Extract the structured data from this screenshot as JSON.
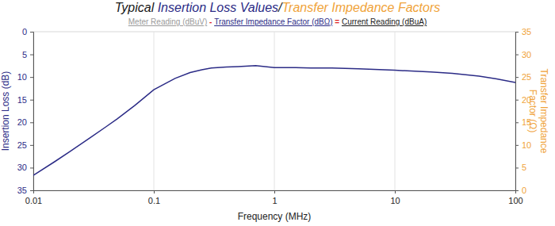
{
  "chart_data": {
    "type": "line",
    "title_parts": [
      {
        "text": "Typical ",
        "color": "#1a1a1a"
      },
      {
        "text": "Insertion Loss Values",
        "color": "#2b2b86"
      },
      {
        "text": "/",
        "color": "#1a1a1a"
      },
      {
        "text": "Transfer Impedance Factors",
        "color": "#f0a33a"
      }
    ],
    "subtitle_parts": [
      {
        "text": "Meter Reading (dBuV)",
        "color": "#9a9a9a"
      },
      {
        "text": " - ",
        "color": "#e02020"
      },
      {
        "text": "Transfer Impedance Factor (dBΩ)",
        "color": "#2b2b86"
      },
      {
        "text": " = ",
        "color": "#e02020"
      },
      {
        "text": "Current Reading (dBuA)",
        "color": "#1a1a1a"
      }
    ],
    "xlabel": "Frequency (MHz)",
    "ylabel": "Insertion Loss (dB)",
    "y2label": [
      "Transfer Impedance",
      "Factor (Ω)"
    ],
    "log": "x",
    "grid": "x",
    "xlim": [
      0.01,
      100
    ],
    "xticks": [
      0.01,
      0.1,
      1,
      10,
      100
    ],
    "ylim": [
      35,
      0
    ],
    "yticks": [
      0,
      5,
      10,
      15,
      20,
      25,
      30,
      35
    ],
    "y2lim": [
      0,
      35
    ],
    "y2ticks": [
      0,
      5,
      10,
      15,
      20,
      25,
      30,
      35
    ],
    "x": [
      0.01,
      0.015,
      0.02,
      0.03,
      0.04,
      0.05,
      0.07,
      0.1,
      0.15,
      0.2,
      0.25,
      0.3,
      0.4,
      0.5,
      0.7,
      1,
      1.5,
      2,
      3,
      5,
      10,
      20,
      30,
      50,
      70,
      100
    ],
    "values": [
      31.7,
      28.7,
      26.5,
      23.3,
      21.0,
      19.2,
      16.2,
      12.8,
      10.3,
      9.0,
      8.4,
      8.0,
      7.8,
      7.7,
      7.5,
      7.9,
      7.9,
      8.0,
      8.0,
      8.2,
      8.5,
      8.9,
      9.2,
      9.8,
      10.4,
      11.2
    ],
    "color": "#2b2b86"
  }
}
